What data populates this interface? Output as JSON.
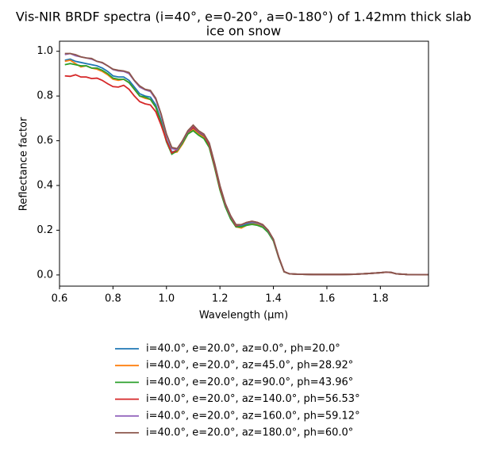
{
  "chart_data": {
    "type": "line",
    "title": [
      "Vis-NIR BRDF spectra (i=40°, e=0-20°, a=0-180°) of 1.42mm thick slab",
      "ice on snow"
    ],
    "x_label": "Wavelength (μm)",
    "y_label": "Reflectance factor",
    "x": [
      0.62,
      0.64,
      0.66,
      0.68,
      0.7,
      0.72,
      0.74,
      0.76,
      0.78,
      0.8,
      0.82,
      0.84,
      0.86,
      0.88,
      0.9,
      0.92,
      0.94,
      0.96,
      0.98,
      1.0,
      1.02,
      1.04,
      1.06,
      1.08,
      1.1,
      1.12,
      1.14,
      1.16,
      1.18,
      1.2,
      1.22,
      1.24,
      1.26,
      1.28,
      1.3,
      1.32,
      1.34,
      1.36,
      1.38,
      1.4,
      1.42,
      1.44,
      1.46,
      1.5,
      1.55,
      1.6,
      1.65,
      1.7,
      1.75,
      1.8,
      1.82,
      1.84,
      1.86,
      1.9,
      1.95,
      1.98
    ],
    "series": [
      {
        "name": "i=40.0°, e=20.0°, az=0.0°, ph=20.0°",
        "color": "#1f77b4",
        "values": [
          0.96,
          0.965,
          0.955,
          0.95,
          0.945,
          0.94,
          0.935,
          0.925,
          0.91,
          0.89,
          0.885,
          0.885,
          0.87,
          0.84,
          0.81,
          0.8,
          0.795,
          0.76,
          0.69,
          0.605,
          0.55,
          0.555,
          0.59,
          0.635,
          0.655,
          0.635,
          0.62,
          0.58,
          0.49,
          0.39,
          0.315,
          0.26,
          0.22,
          0.22,
          0.228,
          0.232,
          0.228,
          0.218,
          0.195,
          0.155,
          0.078,
          0.014,
          0.005,
          0.003,
          0.002,
          0.002,
          0.002,
          0.003,
          0.006,
          0.01,
          0.012,
          0.011,
          0.005,
          0.002,
          0.001,
          0.001
        ]
      },
      {
        "name": "i=40.0°, e=20.0°, az=45.0°, ph=28.92°",
        "color": "#ff7f0e",
        "values": [
          0.955,
          0.96,
          0.945,
          0.93,
          0.935,
          0.925,
          0.92,
          0.91,
          0.895,
          0.875,
          0.87,
          0.875,
          0.86,
          0.83,
          0.8,
          0.79,
          0.785,
          0.75,
          0.68,
          0.6,
          0.545,
          0.55,
          0.585,
          0.63,
          0.65,
          0.63,
          0.615,
          0.575,
          0.485,
          0.385,
          0.31,
          0.255,
          0.215,
          0.21,
          0.222,
          0.228,
          0.225,
          0.215,
          0.193,
          0.153,
          0.077,
          0.014,
          0.005,
          0.003,
          0.002,
          0.002,
          0.002,
          0.003,
          0.006,
          0.01,
          0.012,
          0.011,
          0.005,
          0.002,
          0.001,
          0.001
        ]
      },
      {
        "name": "i=40.0°, e=20.0°, az=90.0°, ph=43.96°",
        "color": "#2ca02c",
        "values": [
          0.94,
          0.945,
          0.94,
          0.935,
          0.935,
          0.925,
          0.925,
          0.915,
          0.9,
          0.88,
          0.875,
          0.875,
          0.86,
          0.83,
          0.8,
          0.795,
          0.785,
          0.75,
          0.68,
          0.595,
          0.54,
          0.555,
          0.59,
          0.63,
          0.645,
          0.625,
          0.61,
          0.57,
          0.48,
          0.38,
          0.305,
          0.25,
          0.215,
          0.215,
          0.222,
          0.226,
          0.222,
          0.213,
          0.19,
          0.152,
          0.076,
          0.014,
          0.005,
          0.003,
          0.002,
          0.002,
          0.002,
          0.003,
          0.006,
          0.01,
          0.012,
          0.011,
          0.005,
          0.002,
          0.001,
          0.001
        ]
      },
      {
        "name": "i=40.0°, e=20.0°, az=140.0°, ph=56.53°",
        "color": "#d62728",
        "values": [
          0.89,
          0.888,
          0.895,
          0.885,
          0.885,
          0.878,
          0.88,
          0.87,
          0.855,
          0.842,
          0.84,
          0.848,
          0.83,
          0.8,
          0.775,
          0.765,
          0.76,
          0.73,
          0.67,
          0.6,
          0.545,
          0.56,
          0.6,
          0.64,
          0.66,
          0.64,
          0.625,
          0.58,
          0.49,
          0.39,
          0.315,
          0.26,
          0.22,
          0.225,
          0.235,
          0.24,
          0.235,
          0.225,
          0.2,
          0.158,
          0.08,
          0.015,
          0.005,
          0.003,
          0.002,
          0.002,
          0.002,
          0.003,
          0.006,
          0.01,
          0.012,
          0.011,
          0.005,
          0.002,
          0.001,
          0.001
        ]
      },
      {
        "name": "i=40.0°, e=20.0°, az=160.0°, ph=59.12°",
        "color": "#9467bd",
        "values": [
          0.985,
          0.99,
          0.98,
          0.975,
          0.97,
          0.965,
          0.955,
          0.948,
          0.935,
          0.918,
          0.912,
          0.91,
          0.9,
          0.868,
          0.84,
          0.828,
          0.82,
          0.785,
          0.715,
          0.625,
          0.565,
          0.56,
          0.598,
          0.642,
          0.668,
          0.642,
          0.628,
          0.588,
          0.498,
          0.398,
          0.318,
          0.262,
          0.224,
          0.224,
          0.233,
          0.238,
          0.233,
          0.223,
          0.198,
          0.158,
          0.078,
          0.015,
          0.005,
          0.003,
          0.002,
          0.002,
          0.002,
          0.003,
          0.006,
          0.01,
          0.013,
          0.012,
          0.005,
          0.002,
          0.001,
          0.001
        ]
      },
      {
        "name": "i=40.0°, e=20.0°, az=180.0°, ph=60.0°",
        "color": "#8c564b",
        "values": [
          0.99,
          0.99,
          0.985,
          0.975,
          0.97,
          0.968,
          0.955,
          0.95,
          0.935,
          0.92,
          0.915,
          0.912,
          0.905,
          0.87,
          0.845,
          0.83,
          0.825,
          0.79,
          0.72,
          0.63,
          0.57,
          0.565,
          0.6,
          0.645,
          0.67,
          0.645,
          0.63,
          0.59,
          0.5,
          0.4,
          0.32,
          0.265,
          0.225,
          0.225,
          0.235,
          0.24,
          0.235,
          0.225,
          0.2,
          0.16,
          0.08,
          0.015,
          0.005,
          0.003,
          0.002,
          0.002,
          0.002,
          0.003,
          0.006,
          0.01,
          0.013,
          0.012,
          0.005,
          0.002,
          0.001,
          0.001
        ]
      }
    ],
    "xlim": [
      0.6,
      1.98
    ],
    "ylim": [
      -0.05,
      1.045
    ],
    "xticks": [
      0.6,
      0.8,
      {
        "value": 1,
        "label": "1.0"
      },
      1.2,
      1.4,
      1.6,
      1.8
    ],
    "yticks": [
      {
        "value": 0,
        "label": "0.0"
      },
      0.2,
      0.4,
      0.6,
      0.8,
      {
        "value": 1,
        "label": "1.0"
      }
    ],
    "grid": false,
    "legend": "below"
  }
}
